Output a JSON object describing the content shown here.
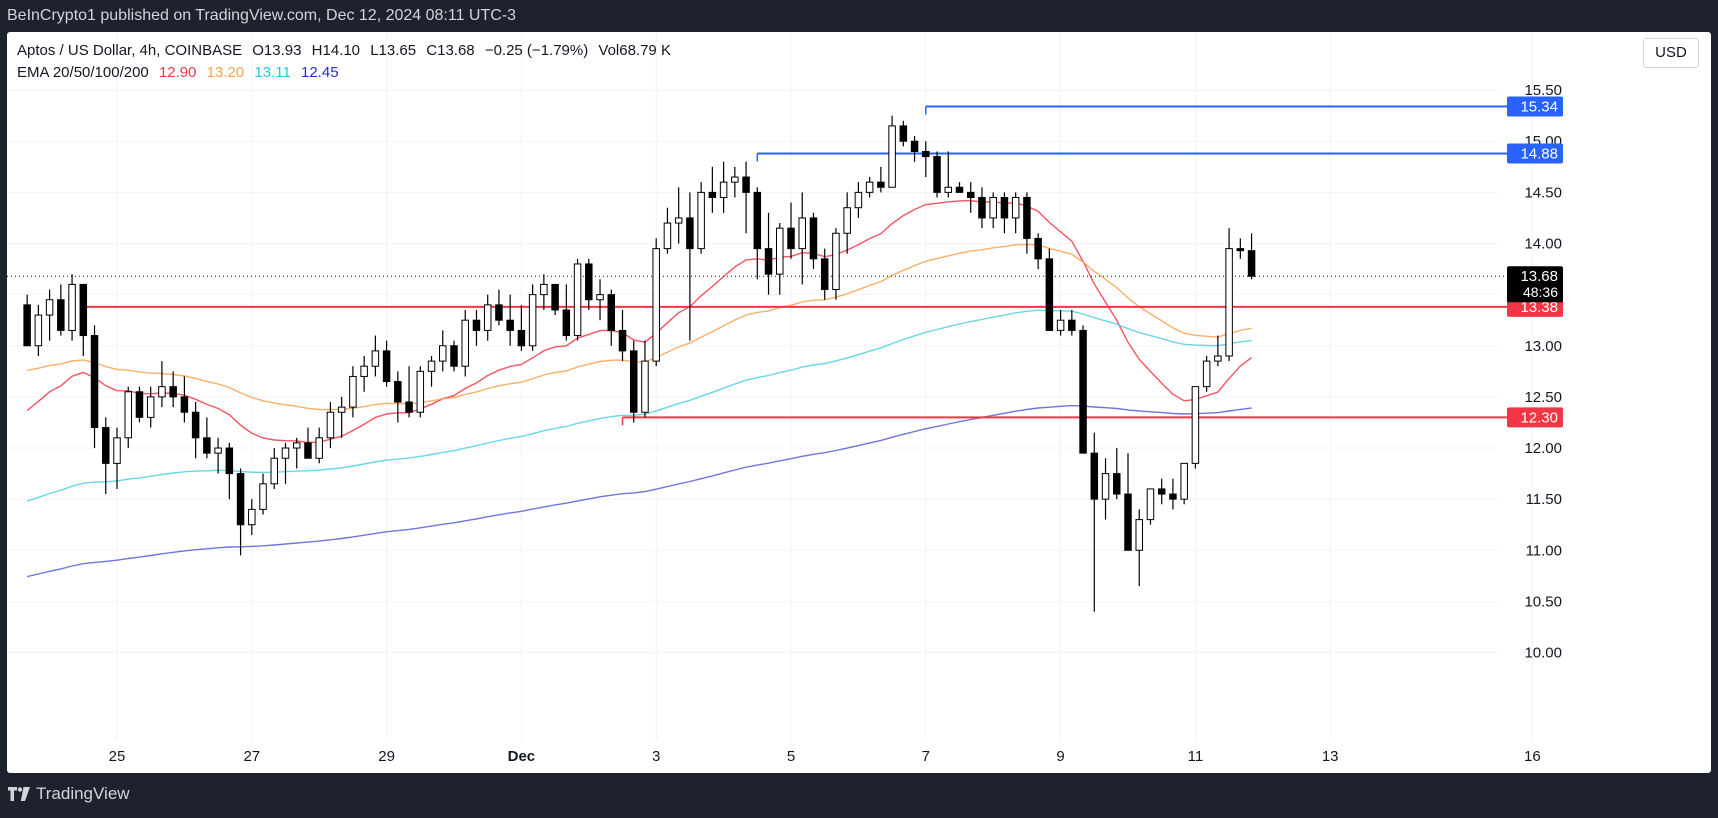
{
  "header": {
    "published": "BeInCrypto1 published on TradingView.com, Dec 12, 2024 08:11 UTC-3"
  },
  "legend": {
    "symbol": "Aptos / US Dollar, 4h, COINBASE",
    "open": "O13.93",
    "high": "H14.10",
    "low": "L13.65",
    "close": "C13.68",
    "change": "−0.25 (−1.79%)",
    "volume": "Vol68.79 K",
    "ema_label": "EMA 20/50/100/200",
    "ema20": "12.90",
    "ema50": "13.20",
    "ema100": "13.11",
    "ema200": "12.45"
  },
  "currency": "USD",
  "footer": {
    "brand": "TradingView"
  },
  "colors": {
    "ema20": "#f23645",
    "ema50": "#f7a24e",
    "ema100": "#4dd0e1",
    "ema200": "#5b5bd6",
    "resistance": "#2962ff",
    "support": "#f23645",
    "candle": "#000000"
  },
  "chart_data": {
    "type": "candlestick",
    "ylim": [
      9.8,
      15.55
    ],
    "y_ticks": [
      10.0,
      10.5,
      11.0,
      11.5,
      12.0,
      12.5,
      13.0,
      13.5,
      14.0,
      14.5,
      15.0,
      15.5
    ],
    "y_tick_labels": [
      "10.00",
      "10.50",
      "11.00",
      "11.50",
      "12.00",
      "12.50",
      "13.00",
      "",
      "14.00",
      "14.50",
      "15.00",
      "15.50"
    ],
    "x_ticks": [
      {
        "day": 25,
        "label": "25"
      },
      {
        "day": 27,
        "label": "27"
      },
      {
        "day": 29,
        "label": "29"
      },
      {
        "day": 31,
        "label": "Dec"
      },
      {
        "day": 33,
        "label": "3"
      },
      {
        "day": 35,
        "label": "5"
      },
      {
        "day": 37,
        "label": "7"
      },
      {
        "day": 39,
        "label": "9"
      },
      {
        "day": 41,
        "label": "11"
      },
      {
        "day": 43,
        "label": "13"
      },
      {
        "day": 46,
        "label": "16"
      }
    ],
    "start": "Nov 23, 2024 16:00",
    "candles_per_day": 6,
    "ohlc": [
      [
        13.4,
        13.5,
        13.0,
        13.0
      ],
      [
        13.0,
        13.4,
        12.9,
        13.3
      ],
      [
        13.3,
        13.55,
        13.05,
        13.45
      ],
      [
        13.45,
        13.6,
        13.1,
        13.15
      ],
      [
        13.15,
        13.7,
        13.05,
        13.6
      ],
      [
        13.6,
        13.6,
        12.9,
        13.1
      ],
      [
        13.1,
        13.2,
        12.0,
        12.2
      ],
      [
        12.2,
        12.3,
        11.55,
        11.85
      ],
      [
        11.85,
        12.2,
        11.6,
        12.1
      ],
      [
        12.1,
        12.6,
        12.0,
        12.55
      ],
      [
        12.55,
        12.6,
        12.25,
        12.3
      ],
      [
        12.3,
        12.6,
        12.2,
        12.5
      ],
      [
        12.5,
        12.85,
        12.4,
        12.6
      ],
      [
        12.6,
        12.75,
        12.4,
        12.5
      ],
      [
        12.5,
        12.7,
        12.25,
        12.35
      ],
      [
        12.35,
        12.45,
        11.9,
        12.1
      ],
      [
        12.1,
        12.3,
        11.9,
        11.95
      ],
      [
        11.95,
        12.1,
        11.75,
        12.0
      ],
      [
        12.0,
        12.05,
        11.5,
        11.75
      ],
      [
        11.75,
        11.8,
        10.95,
        11.25
      ],
      [
        11.25,
        11.5,
        11.15,
        11.4
      ],
      [
        11.4,
        11.75,
        11.35,
        11.65
      ],
      [
        11.65,
        12.0,
        11.6,
        11.9
      ],
      [
        11.9,
        12.05,
        11.65,
        12.0
      ],
      [
        12.0,
        12.1,
        11.8,
        12.05
      ],
      [
        12.05,
        12.2,
        11.9,
        11.9
      ],
      [
        11.9,
        12.2,
        11.85,
        12.1
      ],
      [
        12.1,
        12.45,
        12.0,
        12.35
      ],
      [
        12.35,
        12.5,
        12.1,
        12.4
      ],
      [
        12.4,
        12.8,
        12.3,
        12.7
      ],
      [
        12.7,
        12.9,
        12.55,
        12.8
      ],
      [
        12.8,
        13.1,
        12.7,
        12.95
      ],
      [
        12.95,
        13.05,
        12.6,
        12.65
      ],
      [
        12.65,
        12.75,
        12.25,
        12.45
      ],
      [
        12.45,
        12.8,
        12.3,
        12.35
      ],
      [
        12.35,
        12.8,
        12.3,
        12.75
      ],
      [
        12.75,
        12.9,
        12.6,
        12.85
      ],
      [
        12.85,
        13.15,
        12.75,
        13.0
      ],
      [
        13.0,
        13.05,
        12.75,
        12.8
      ],
      [
        12.8,
        13.35,
        12.7,
        13.25
      ],
      [
        13.25,
        13.35,
        13.0,
        13.15
      ],
      [
        13.15,
        13.5,
        13.05,
        13.4
      ],
      [
        13.4,
        13.55,
        13.2,
        13.25
      ],
      [
        13.25,
        13.5,
        13.0,
        13.15
      ],
      [
        13.15,
        13.4,
        12.95,
        13.0
      ],
      [
        13.0,
        13.6,
        12.95,
        13.5
      ],
      [
        13.5,
        13.7,
        13.35,
        13.6
      ],
      [
        13.6,
        13.6,
        13.3,
        13.35
      ],
      [
        13.35,
        13.6,
        13.05,
        13.1
      ],
      [
        13.1,
        13.85,
        13.05,
        13.8
      ],
      [
        13.8,
        13.85,
        13.35,
        13.45
      ],
      [
        13.45,
        13.65,
        13.25,
        13.5
      ],
      [
        13.5,
        13.55,
        13.0,
        13.15
      ],
      [
        13.15,
        13.35,
        12.85,
        12.95
      ],
      [
        12.95,
        13.05,
        12.25,
        12.35
      ],
      [
        12.35,
        13.05,
        12.3,
        12.85
      ],
      [
        12.85,
        14.05,
        12.8,
        13.95
      ],
      [
        13.95,
        14.35,
        13.9,
        14.2
      ],
      [
        14.2,
        14.55,
        14.0,
        14.25
      ],
      [
        14.25,
        14.5,
        13.05,
        13.95
      ],
      [
        13.95,
        14.6,
        13.9,
        14.5
      ],
      [
        14.5,
        14.75,
        14.3,
        14.45
      ],
      [
        14.45,
        14.8,
        14.3,
        14.6
      ],
      [
        14.6,
        14.75,
        14.45,
        14.65
      ],
      [
        14.65,
        14.8,
        14.1,
        14.5
      ],
      [
        14.5,
        14.55,
        13.65,
        13.95
      ],
      [
        13.95,
        14.3,
        13.5,
        13.7
      ],
      [
        13.7,
        14.2,
        13.5,
        14.15
      ],
      [
        14.15,
        14.4,
        13.85,
        13.95
      ],
      [
        13.95,
        14.5,
        13.6,
        14.25
      ],
      [
        14.25,
        14.3,
        13.75,
        13.85
      ],
      [
        13.85,
        13.95,
        13.45,
        13.55
      ],
      [
        13.55,
        14.15,
        13.45,
        14.1
      ],
      [
        14.1,
        14.5,
        13.9,
        14.35
      ],
      [
        14.35,
        14.6,
        14.25,
        14.5
      ],
      [
        14.5,
        14.65,
        14.45,
        14.6
      ],
      [
        14.6,
        14.75,
        14.5,
        14.55
      ],
      [
        14.55,
        15.25,
        14.55,
        15.15
      ],
      [
        15.15,
        15.2,
        14.95,
        15.0
      ],
      [
        15.0,
        15.05,
        14.8,
        14.9
      ],
      [
        14.9,
        15.0,
        14.65,
        14.85
      ],
      [
        14.85,
        14.9,
        14.45,
        14.5
      ],
      [
        14.5,
        14.9,
        14.45,
        14.55
      ],
      [
        14.55,
        14.6,
        14.5,
        14.5
      ],
      [
        14.5,
        14.6,
        14.3,
        14.45
      ],
      [
        14.45,
        14.55,
        14.15,
        14.25
      ],
      [
        14.25,
        14.5,
        14.15,
        14.45
      ],
      [
        14.45,
        14.5,
        14.1,
        14.25
      ],
      [
        14.25,
        14.5,
        14.1,
        14.45
      ],
      [
        14.45,
        14.5,
        13.9,
        14.05
      ],
      [
        14.05,
        14.1,
        13.75,
        13.85
      ],
      [
        13.85,
        13.95,
        13.15,
        13.15
      ],
      [
        13.15,
        13.35,
        13.1,
        13.25
      ],
      [
        13.25,
        13.35,
        13.1,
        13.15
      ],
      [
        13.15,
        13.2,
        11.95,
        11.95
      ],
      [
        11.95,
        12.15,
        10.4,
        11.5
      ],
      [
        11.5,
        11.9,
        11.3,
        11.75
      ],
      [
        11.75,
        12.0,
        11.5,
        11.55
      ],
      [
        11.55,
        11.95,
        11.0,
        11.0
      ],
      [
        11.0,
        11.4,
        10.65,
        11.3
      ],
      [
        11.3,
        11.6,
        11.25,
        11.6
      ],
      [
        11.6,
        11.7,
        11.45,
        11.55
      ],
      [
        11.55,
        11.7,
        11.4,
        11.5
      ],
      [
        11.5,
        11.85,
        11.45,
        11.85
      ],
      [
        11.85,
        12.6,
        11.8,
        12.6
      ],
      [
        12.6,
        12.9,
        12.55,
        12.85
      ],
      [
        12.85,
        13.1,
        12.8,
        12.9
      ],
      [
        12.9,
        14.15,
        12.85,
        13.95
      ],
      [
        13.95,
        14.05,
        13.85,
        13.93
      ],
      [
        13.93,
        14.1,
        13.65,
        13.68
      ]
    ],
    "ema": [
      {
        "name": "EMA 20",
        "period": 20,
        "last": 12.9
      },
      {
        "name": "EMA 50",
        "period": 50,
        "last": 13.2
      },
      {
        "name": "EMA 100",
        "period": 100,
        "last": 13.11
      },
      {
        "name": "EMA 200",
        "period": 200,
        "last": 12.45
      }
    ],
    "levels": [
      {
        "value": 15.34,
        "label": "15.34",
        "kind": "resistance",
        "from_day": 37
      },
      {
        "value": 14.88,
        "label": "14.88",
        "kind": "resistance",
        "from_day": 34.5
      },
      {
        "value": 13.38,
        "label": "13.38",
        "kind": "support",
        "from_day": 24.5
      },
      {
        "value": 12.3,
        "label": "12.30",
        "kind": "support",
        "from_day": 32.5
      }
    ],
    "last_price": {
      "value": 13.68,
      "label": "13.68",
      "countdown": "48:36"
    }
  }
}
